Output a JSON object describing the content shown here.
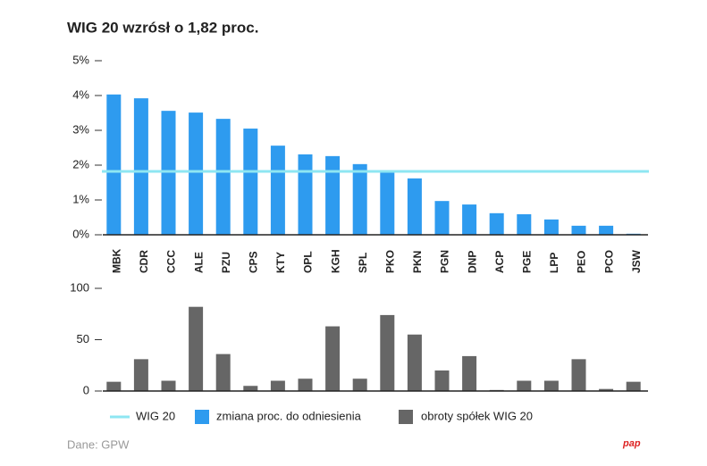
{
  "chart_data": [
    {
      "type": "bar",
      "title": "WIG 20 wzrósł o 1,82 proc.",
      "categories": [
        "MBK",
        "CDR",
        "CCC",
        "ALE",
        "PZU",
        "CPS",
        "KTY",
        "OPL",
        "KGH",
        "SPL",
        "PKO",
        "PKN",
        "PGN",
        "DNP",
        "ACP",
        "PGE",
        "LPP",
        "PEO",
        "PCO",
        "JSW"
      ],
      "series": [
        {
          "name": "zmiana proc. do odniesienia",
          "color": "#2e9bef",
          "values": [
            4.03,
            3.92,
            3.56,
            3.51,
            3.33,
            3.05,
            2.56,
            2.31,
            2.26,
            2.03,
            1.82,
            1.62,
            0.97,
            0.87,
            0.62,
            0.59,
            0.44,
            0.26,
            0.26,
            0.03
          ]
        }
      ],
      "reference_line": {
        "name": "WIG 20",
        "value": 1.82,
        "color": "#8ee6f2"
      },
      "ylim": [
        0,
        5
      ],
      "yticks": [
        {
          "value": 0,
          "label": "0%"
        },
        {
          "value": 1,
          "label": "1%"
        },
        {
          "value": 2,
          "label": "2%"
        },
        {
          "value": 3,
          "label": "3%"
        },
        {
          "value": 4,
          "label": "4%"
        },
        {
          "value": 5,
          "label": "5%"
        }
      ]
    },
    {
      "type": "bar",
      "series": [
        {
          "name": "obroty spółek WIG 20",
          "color": "#666666",
          "values": [
            9,
            31,
            10,
            82,
            36,
            5,
            10,
            12,
            63,
            12,
            74,
            55,
            20,
            34,
            1,
            10,
            10,
            31,
            2,
            9
          ]
        }
      ],
      "ylim": [
        0,
        100
      ],
      "yticks": [
        0,
        50,
        100
      ]
    }
  ],
  "source": "Dane: GPW",
  "logo": "pap"
}
